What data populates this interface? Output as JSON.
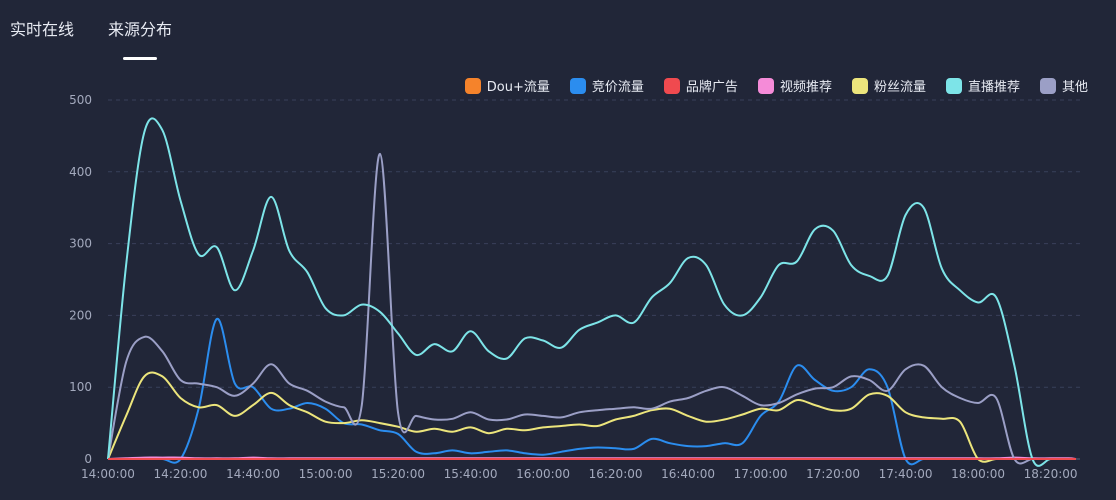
{
  "tabs": [
    "实时在线",
    "来源分布"
  ],
  "active_tab": 1,
  "colors": {
    "background": "#212638",
    "grid": "#39405a",
    "axis_text": "#a3a9bd"
  },
  "chart_data": {
    "type": "line",
    "title": "",
    "xlabel": "",
    "ylabel": "",
    "ylim": [
      0,
      500
    ],
    "yticks": [
      0,
      100,
      200,
      300,
      400,
      500
    ],
    "xticks": [
      "14:00:00",
      "14:20:00",
      "14:40:00",
      "15:00:00",
      "15:20:00",
      "15:40:00",
      "16:00:00",
      "16:20:00",
      "16:40:00",
      "17:00:00",
      "17:20:00",
      "17:40:00",
      "18:00:00",
      "18:20:00"
    ],
    "x": [
      "14:00",
      "14:05",
      "14:10",
      "14:15",
      "14:20",
      "14:25",
      "14:30",
      "14:35",
      "14:40",
      "14:45",
      "14:50",
      "14:55",
      "15:00",
      "15:05",
      "15:10",
      "15:15",
      "15:20",
      "15:25",
      "15:30",
      "15:35",
      "15:40",
      "15:45",
      "15:50",
      "15:55",
      "16:00",
      "16:05",
      "16:10",
      "16:15",
      "16:20",
      "16:25",
      "16:30",
      "16:35",
      "16:40",
      "16:45",
      "16:50",
      "16:55",
      "17:00",
      "17:05",
      "17:10",
      "17:15",
      "17:20",
      "17:25",
      "17:30",
      "17:35",
      "17:40",
      "17:45",
      "17:50",
      "17:55",
      "18:00",
      "18:05",
      "18:10",
      "18:15",
      "18:20",
      "18:25",
      "18:27"
    ],
    "legend_position": "top-right",
    "series": [
      {
        "name": "Dou+流量",
        "color": "#f5832b",
        "values": [
          0,
          0,
          0,
          0,
          0,
          0,
          0,
          0,
          0,
          0,
          0,
          0,
          0,
          0,
          0,
          0,
          0,
          0,
          0,
          0,
          0,
          0,
          0,
          0,
          0,
          0,
          0,
          0,
          0,
          0,
          0,
          0,
          0,
          0,
          0,
          0,
          0,
          0,
          0,
          0,
          0,
          0,
          0,
          0,
          0,
          0,
          0,
          0,
          0,
          0,
          0,
          0,
          0,
          0,
          0
        ]
      },
      {
        "name": "竞价流量",
        "color": "#2b8def",
        "values": [
          0,
          0,
          0,
          0,
          0,
          70,
          195,
          105,
          100,
          70,
          70,
          78,
          70,
          50,
          48,
          40,
          35,
          10,
          8,
          12,
          8,
          10,
          12,
          8,
          6,
          10,
          14,
          16,
          15,
          14,
          28,
          22,
          18,
          18,
          22,
          22,
          60,
          80,
          130,
          110,
          95,
          100,
          125,
          100,
          0,
          0,
          0,
          0,
          0,
          0,
          0,
          0,
          0,
          0,
          0
        ]
      },
      {
        "name": "品牌广告",
        "color": "#f04a4f",
        "values": [
          0,
          0,
          0,
          0,
          0,
          0,
          0,
          0,
          0,
          0,
          0,
          0,
          0,
          0,
          0,
          0,
          0,
          0,
          0,
          0,
          0,
          0,
          0,
          0,
          0,
          0,
          0,
          0,
          0,
          0,
          0,
          0,
          0,
          0,
          0,
          0,
          0,
          0,
          0,
          0,
          0,
          0,
          0,
          0,
          0,
          0,
          0,
          0,
          0,
          0,
          0,
          0,
          0,
          0,
          0
        ]
      },
      {
        "name": "视频推荐",
        "color": "#f58bd8",
        "values": [
          0,
          1,
          2,
          2,
          2,
          1,
          1,
          1,
          2,
          1,
          1,
          1,
          1,
          1,
          1,
          1,
          1,
          1,
          1,
          1,
          1,
          1,
          1,
          1,
          1,
          1,
          1,
          1,
          1,
          1,
          1,
          1,
          1,
          1,
          1,
          1,
          1,
          1,
          1,
          1,
          1,
          1,
          1,
          1,
          1,
          1,
          1,
          1,
          1,
          1,
          2,
          1,
          1,
          1,
          0
        ]
      },
      {
        "name": "粉丝流量",
        "color": "#ece57c",
        "values": [
          0,
          60,
          115,
          115,
          85,
          72,
          75,
          60,
          75,
          92,
          75,
          65,
          52,
          50,
          54,
          50,
          45,
          38,
          42,
          38,
          44,
          36,
          42,
          40,
          44,
          46,
          48,
          46,
          55,
          60,
          68,
          70,
          60,
          52,
          55,
          62,
          70,
          68,
          82,
          75,
          68,
          70,
          90,
          88,
          65,
          58,
          56,
          52,
          0,
          0,
          0,
          0,
          0,
          0,
          0
        ]
      },
      {
        "name": "直播推荐",
        "color": "#7de4e8",
        "values": [
          0,
          270,
          455,
          458,
          360,
          285,
          295,
          235,
          290,
          365,
          290,
          260,
          210,
          200,
          215,
          205,
          175,
          145,
          160,
          150,
          178,
          150,
          140,
          168,
          165,
          155,
          180,
          190,
          200,
          190,
          225,
          245,
          280,
          270,
          215,
          200,
          225,
          270,
          275,
          320,
          318,
          270,
          255,
          255,
          340,
          350,
          265,
          235,
          218,
          225,
          130,
          0,
          0,
          0,
          0
        ]
      },
      {
        "name": "其他",
        "color": "#9b9fc6",
        "values": [
          0,
          135,
          170,
          150,
          110,
          105,
          100,
          88,
          105,
          132,
          105,
          95,
          80,
          72,
          75,
          425,
          65,
          60,
          55,
          56,
          65,
          55,
          55,
          62,
          60,
          58,
          65,
          68,
          70,
          72,
          70,
          80,
          85,
          95,
          100,
          88,
          75,
          78,
          90,
          98,
          100,
          115,
          110,
          95,
          125,
          130,
          100,
          85,
          78,
          85,
          0,
          0,
          0,
          0,
          0
        ]
      }
    ]
  }
}
